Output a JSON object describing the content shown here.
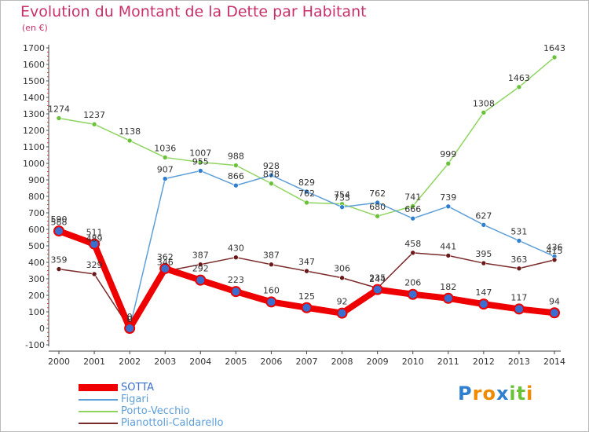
{
  "header": {
    "title": "Evolution du Montant de la Dette par Habitant",
    "subtitle": "(en €)"
  },
  "colors": {
    "title": "#c8306a",
    "axis": "#444444",
    "grid": "#dddddd"
  },
  "chart_data": {
    "type": "line",
    "title": "Evolution du Montant de la Dette par Habitant",
    "subtitle": "(en €)",
    "xlabel": "",
    "ylabel": "",
    "categories": [
      "2000",
      "2001",
      "2002",
      "2003",
      "2004",
      "2005",
      "2006",
      "2007",
      "2008",
      "2009",
      "2010",
      "2011",
      "2012",
      "2013",
      "2014"
    ],
    "ylim": [
      -100,
      1700
    ],
    "yticks": [
      -100,
      0,
      100,
      200,
      300,
      400,
      500,
      600,
      700,
      800,
      900,
      1000,
      1100,
      1200,
      1300,
      1400,
      1500,
      1600,
      1700
    ],
    "grid": false,
    "legend_position": "bottom-left",
    "series": [
      {
        "name": "SOTTA",
        "color": "#ee0000",
        "marker": "#3a6fd0",
        "values": [
          590,
          511,
          0,
          362,
          292,
          223,
          160,
          125,
          92,
          235,
          206,
          182,
          147,
          117,
          94
        ],
        "labels": [
          "590",
          "511",
          "0",
          "362",
          "292",
          "223",
          "160",
          "125",
          "92",
          "235",
          "206",
          "182",
          "147",
          "117",
          "94"
        ]
      },
      {
        "name": "Figari",
        "color": "#5f9fd8",
        "marker": "#2f7fd0",
        "values": [
          588,
          489,
          0,
          907,
          955,
          866,
          928,
          829,
          735,
          762,
          666,
          739,
          627,
          531,
          436
        ],
        "labels": [
          "588",
          "489",
          "0",
          "907",
          "955",
          "866",
          "928",
          "829",
          "735",
          "762",
          "666",
          "739",
          "627",
          "531",
          "436"
        ]
      },
      {
        "name": "Porto-Vecchio",
        "color": "#8fd460",
        "marker": "#6ac23a",
        "values": [
          1274,
          1237,
          1138,
          1036,
          1007,
          988,
          878,
          762,
          754,
          680,
          741,
          999,
          1308,
          1463,
          1643
        ],
        "labels": [
          "1274",
          "1237",
          "1138",
          "1036",
          "1007",
          "988",
          "878",
          "762",
          "754",
          "680",
          "741",
          "999",
          "1308",
          "1463",
          "1643"
        ]
      },
      {
        "name": "Pianottoli-Caldarello",
        "color": "#7a2a2a",
        "marker": "#6a1818",
        "values": [
          359,
          329,
          0,
          346,
          387,
          430,
          387,
          347,
          306,
          244,
          458,
          441,
          395,
          363,
          415
        ],
        "labels": [
          "359",
          "329",
          "0",
          "346",
          "387",
          "430",
          "387",
          "347",
          "306",
          "244",
          "458",
          "441",
          "395",
          "363",
          "415"
        ]
      }
    ]
  },
  "legend": {
    "items": [
      {
        "label": "SOTTA",
        "color": "#ee0000",
        "text_color": "#3a6fd0"
      },
      {
        "label": "Figari",
        "color": "#5f9fd8",
        "text_color": "#5f9fd8"
      },
      {
        "label": "Porto-Vecchio",
        "color": "#8fd460",
        "text_color": "#5f9fd8"
      },
      {
        "label": "Pianottoli-Caldarello",
        "color": "#7a2a2a",
        "text_color": "#5f9fd8"
      }
    ]
  },
  "logo": {
    "text": "Proxiti",
    "letters": [
      "P",
      "r",
      "o",
      "x",
      "i",
      "t",
      "i"
    ],
    "letter_colors": [
      "#2f7fd0",
      "#f08a00",
      "#f08a00",
      "#2f7fd0",
      "#6ac23a",
      "#6ac23a",
      "#f08a00"
    ]
  }
}
